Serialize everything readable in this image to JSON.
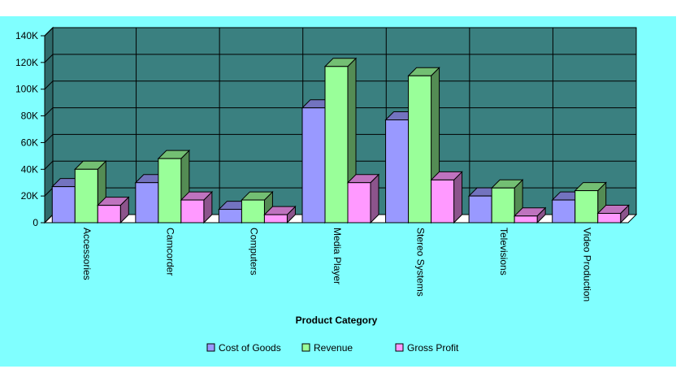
{
  "chart_data": {
    "type": "bar",
    "title": "",
    "xlabel": "Product Category",
    "ylabel": "",
    "ylim": [
      0,
      140000
    ],
    "yticks": [
      0,
      20000,
      40000,
      60000,
      80000,
      100000,
      120000,
      140000
    ],
    "ytick_labels": [
      "0",
      "20K",
      "40K",
      "60K",
      "80K",
      "100K",
      "120K",
      "140K"
    ],
    "categories": [
      "Accessories",
      "Camcorder",
      "Computers",
      "Media Player",
      "Stereo Systems",
      "Televisions",
      "Video Production"
    ],
    "series": [
      {
        "name": "Cost of Goods",
        "color": "#9999ff",
        "values": [
          27000,
          30000,
          10000,
          86000,
          77000,
          20000,
          17000
        ]
      },
      {
        "name": "Revenue",
        "color": "#99ff99",
        "values": [
          40000,
          48000,
          17000,
          117000,
          110000,
          26000,
          24000
        ]
      },
      {
        "name": "Gross Profit",
        "color": "#ff99ff",
        "values": [
          13000,
          17000,
          6000,
          30000,
          32000,
          5000,
          7000
        ]
      }
    ],
    "grid": true,
    "legend_position": "bottom",
    "style": "3d",
    "plot_background": "#3a8080",
    "chart_background": "#80ffff"
  }
}
